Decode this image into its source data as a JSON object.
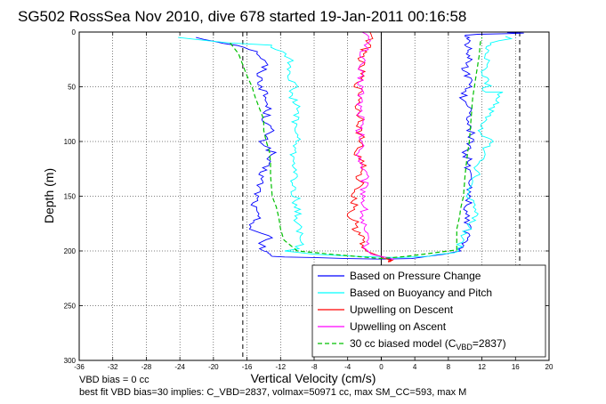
{
  "chart_data": {
    "type": "line",
    "title": "SG502 RossSea Nov 2010, dive 678 started 19-Jan-2011 00:16:58",
    "xlabel": "Vertical Velocity (cm/s)",
    "ylabel": "Depth (m)",
    "xlim": [
      -36,
      20
    ],
    "ylim": [
      300,
      0
    ],
    "y_reversed": true,
    "grid": true,
    "legend_position": "bottom-right",
    "xticks": [
      -36,
      -32,
      -28,
      -24,
      -20,
      -16,
      -12,
      -8,
      -4,
      0,
      4,
      8,
      12,
      16,
      20
    ],
    "xtick_labels": [
      "-36",
      "-32",
      "-28",
      "-24",
      "-20",
      "-16",
      "-12",
      "-8",
      "-4",
      "0",
      "4",
      "8",
      "12",
      "16",
      "20"
    ],
    "yticks": [
      0,
      50,
      100,
      150,
      200,
      250,
      300
    ],
    "ytick_labels": [
      "0",
      "50",
      "100",
      "150",
      "200",
      "250",
      "300"
    ],
    "vlines": [
      -16.5,
      16.5
    ],
    "series": [
      {
        "name": "Based on Pressure Change",
        "color": "#0000ff",
        "x": [
          -22,
          -16,
          -14.5,
          -13.8,
          -14.5,
          -14.2,
          -13.8,
          -13.5,
          -13.8,
          -13.2,
          -14.2,
          -13,
          -13.8,
          -14.2,
          -14.5,
          -14.8,
          -15.2,
          -14.8,
          -15.5,
          -13.2,
          -14.6,
          -13.8,
          -14.5,
          -14,
          -13.5,
          -13.5,
          -13.2,
          -13.2,
          -13,
          -11.5,
          -8,
          -4,
          0,
          4,
          7.5,
          9.4,
          9.8,
          10,
          10.2,
          10.4,
          10.1,
          10.6,
          10.3,
          10.3,
          10.5,
          10,
          10.8,
          10.6,
          10.2,
          10.6,
          9.6,
          10.5,
          10.4,
          9.8,
          10.3,
          11,
          10,
          10.5,
          10.4,
          10.6,
          10.2,
          10.5,
          10,
          10,
          11.5,
          15,
          17,
          15
        ],
        "y": [
          5,
          14,
          20,
          30,
          40,
          50,
          60,
          70,
          80,
          90,
          100,
          110,
          120,
          130,
          140,
          150,
          160,
          170,
          180,
          188,
          193,
          196,
          198,
          200,
          201,
          202,
          203,
          204,
          205,
          205.5,
          206,
          207,
          207.5,
          207,
          203,
          200,
          195,
          190,
          180,
          170,
          160,
          150,
          140,
          130,
          120,
          110,
          100,
          90,
          80,
          70,
          60,
          50,
          40,
          35,
          30,
          25,
          20,
          15,
          10,
          8,
          6,
          5,
          4,
          3,
          2,
          1.5,
          1,
          0.5
        ]
      },
      {
        "name": "Based on Buoyancy and Pitch",
        "color": "#00ffff",
        "x": [
          -24,
          -18,
          -13.5,
          -11.2,
          -10.8,
          -10.8,
          -10.4,
          -10.6,
          -10,
          -10.2,
          -10.2,
          -10,
          -10.6,
          -10.2,
          -10.4,
          -10.6,
          -10.2,
          -10.1,
          -10,
          -9.8,
          -9.6,
          -9.8,
          -11.5,
          -8,
          -3,
          2,
          6,
          9.3,
          9.5,
          10.4,
          11.2,
          11,
          10.6,
          10.8,
          11.5,
          11.5,
          13,
          12,
          11.5,
          12.5,
          14.5,
          12,
          13,
          12,
          12.6,
          12.6,
          12.4,
          13,
          14,
          15.5,
          14.8
        ],
        "y": [
          5,
          10,
          12,
          20,
          30,
          40,
          50,
          60,
          70,
          80,
          90,
          100,
          110,
          120,
          130,
          140,
          150,
          160,
          170,
          180,
          190,
          198,
          200,
          203,
          205,
          206,
          205,
          200,
          190,
          180,
          170,
          160,
          150,
          140,
          130,
          120,
          100,
          95,
          90,
          80,
          55,
          55,
          45,
          40,
          30,
          20,
          15,
          10,
          8,
          6,
          4
        ]
      },
      {
        "name": "Upwelling on Descent",
        "color": "#ff0000",
        "x": [
          -1,
          -1.5,
          -2.2,
          -2.5,
          -2.4,
          -2.8,
          -2.4,
          -2.9,
          -2.2,
          -2.7,
          -2.2,
          -3.1,
          -2.1,
          -2.8,
          -2.3,
          -3.4,
          -3,
          -4.2,
          -2.6,
          -3,
          -2.6,
          -2.2,
          -2.4,
          -1.8,
          -0.8,
          -0.1,
          0.4,
          1,
          1.4,
          0.8,
          1.2,
          0.8
        ],
        "y": [
          0,
          10,
          20,
          30,
          40,
          50,
          60,
          70,
          80,
          90,
          100,
          110,
          120,
          130,
          140,
          150,
          160,
          170,
          175,
          180,
          185,
          190,
          195,
          200,
          203,
          205,
          207,
          208,
          208.5,
          209,
          209.5,
          210
        ]
      },
      {
        "name": "Upwelling on Ascent",
        "color": "#ff00ff",
        "x": [
          -1.8,
          -1.6,
          -2.2,
          -2.5,
          -2.6,
          -2.3,
          -2.4,
          -2.5,
          -2.3,
          -2.7,
          -2.2,
          -2.6,
          -2.3,
          -1.9,
          -2,
          -2,
          -2,
          -2.2,
          -2.1,
          -1.8,
          -2,
          -1.6,
          -1.2,
          0,
          1.2,
          1.5
        ],
        "y": [
          0,
          10,
          20,
          30,
          40,
          50,
          60,
          70,
          80,
          90,
          100,
          110,
          120,
          130,
          140,
          150,
          160,
          170,
          180,
          190,
          195,
          200,
          203,
          205,
          207,
          208
        ]
      },
      {
        "name": "30 cc biased model (C_VBD=2837)",
        "color": "#00c000",
        "dashed": true,
        "x": [
          -18,
          -17.5,
          -17,
          -16.5,
          -16,
          -15.4,
          -15,
          -14.5,
          -14,
          -14,
          -13.7,
          -13.3,
          -13.2,
          -13.2,
          -13.1,
          -13,
          -12.5,
          -12.2,
          -12,
          -11.6,
          -10,
          -6,
          -3,
          0,
          3,
          6,
          9,
          9,
          9.3,
          9.5,
          9.8,
          10,
          10.3,
          10.5,
          10.7,
          10.9,
          11.1,
          11.3,
          11.5,
          11.7,
          11.8,
          12
        ],
        "y": [
          10,
          15,
          20,
          30,
          40,
          50,
          60,
          70,
          80,
          90,
          100,
          110,
          120,
          130,
          140,
          150,
          160,
          170,
          180,
          190,
          200,
          203,
          205,
          207,
          205,
          202,
          199,
          180,
          170,
          160,
          150,
          130,
          110,
          100,
          80,
          60,
          50,
          40,
          30,
          20,
          10,
          5
        ]
      }
    ]
  },
  "legend": {
    "entries": [
      {
        "label": "Based on Pressure Change",
        "color": "#0000ff",
        "dashed": false
      },
      {
        "label": "Based on Buoyancy and Pitch",
        "color": "#00ffff",
        "dashed": false
      },
      {
        "label": "Upwelling on Descent",
        "color": "#ff0000",
        "dashed": false
      },
      {
        "label": "Upwelling on Ascent",
        "color": "#ff00ff",
        "dashed": false
      },
      {
        "label": "30 cc biased model (C",
        "sub": "VBD",
        "tail": "=2837)",
        "color": "#00c000",
        "dashed": true
      }
    ]
  },
  "notes": {
    "line1": "VBD bias = 0 cc",
    "line2": "best fit VBD bias=30 implies: C_VBD=2837, volmax=50971 cc, max SM_CC=593, max M"
  }
}
